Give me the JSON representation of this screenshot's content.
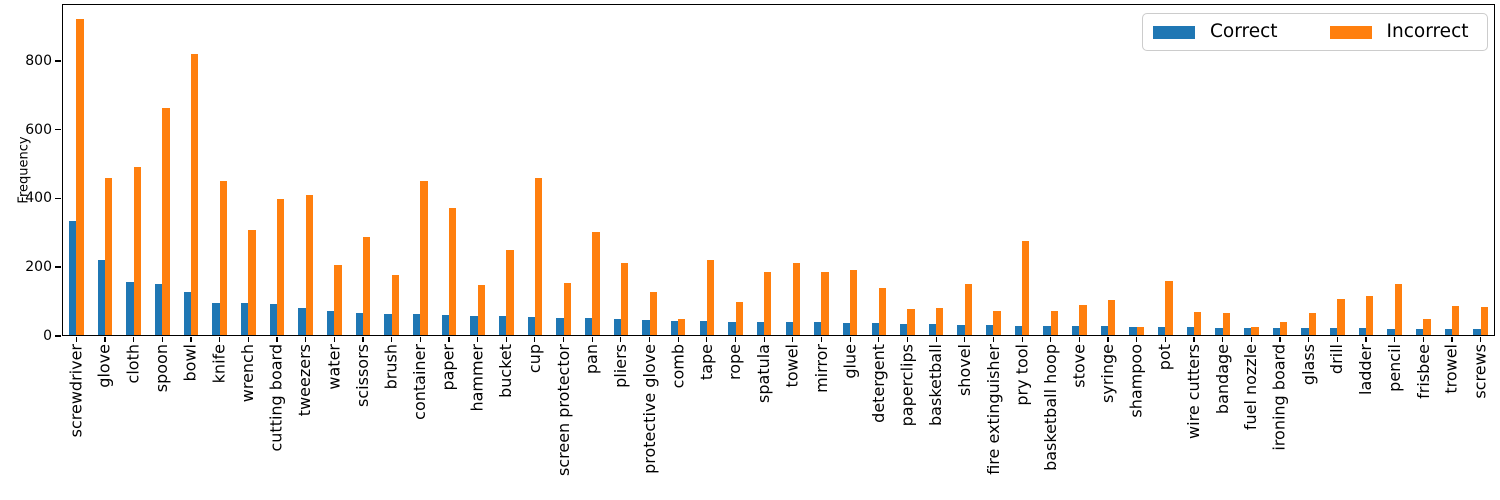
{
  "figure": {
    "background": "#ffffff"
  },
  "chart_data": {
    "type": "bar",
    "title": "",
    "xlabel": "",
    "ylabel": "Frequency",
    "ylim": [
      0,
      965
    ],
    "yticks": [
      0,
      200,
      400,
      600,
      800
    ],
    "grid": false,
    "legend_position": "upper right",
    "legend_orientation": "horizontal",
    "categories": [
      "screwdriver",
      "glove",
      "cloth",
      "spoon",
      "bowl",
      "knife",
      "wrench",
      "cutting board",
      "tweezers",
      "water",
      "scissors",
      "brush",
      "container",
      "paper",
      "hammer",
      "bucket",
      "cup",
      "screen protector",
      "pan",
      "pliers",
      "protective glove",
      "comb",
      "tape",
      "rope",
      "spatula",
      "towel",
      "mirror",
      "glue",
      "detergent",
      "paperclips",
      "basketball",
      "shovel",
      "fire extinguisher",
      "pry tool",
      "basketball hoop",
      "stove",
      "syringe",
      "shampoo",
      "pot",
      "wire cutters",
      "bandage",
      "fuel nozzle",
      "ironing board",
      "glass",
      "drill",
      "ladder",
      "pencil",
      "frisbee",
      "trowel",
      "screws"
    ],
    "series": [
      {
        "name": "Correct",
        "color": "#1f77b4",
        "values": [
          335,
          220,
          158,
          150,
          127,
          96,
          95,
          93,
          82,
          72,
          67,
          65,
          63,
          62,
          59,
          57,
          56,
          53,
          51,
          50,
          47,
          45,
          44,
          42,
          41,
          41,
          40,
          39,
          38,
          35,
          34,
          33,
          31,
          30,
          29,
          28,
          28,
          27,
          25,
          25,
          24,
          24,
          23,
          23,
          23,
          22,
          21,
          21,
          20,
          20
        ]
      },
      {
        "name": "Incorrect",
        "color": "#ff7f0e",
        "values": [
          920,
          460,
          490,
          662,
          820,
          452,
          308,
          397,
          411,
          205,
          287,
          178,
          452,
          372,
          148,
          250,
          458,
          154,
          303,
          212,
          129,
          50,
          221,
          100,
          187,
          212,
          186,
          192,
          140,
          78,
          81,
          151,
          72,
          275,
          72,
          90,
          105,
          25,
          160,
          70,
          67,
          25,
          41,
          66,
          107,
          116,
          150,
          50,
          86,
          83
        ]
      }
    ]
  }
}
